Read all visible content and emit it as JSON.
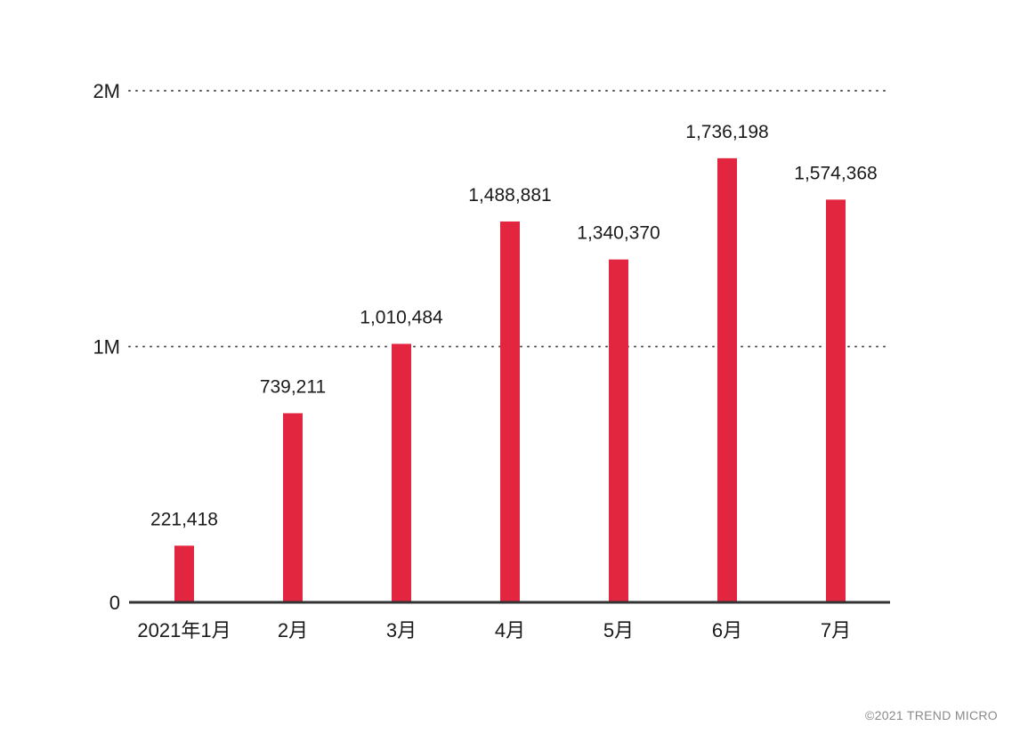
{
  "chart_data": {
    "type": "bar",
    "categories": [
      "2021年1月",
      "2月",
      "3月",
      "4月",
      "5月",
      "6月",
      "7月"
    ],
    "values": [
      221418,
      739211,
      1010484,
      1488881,
      1340370,
      1736198,
      1574368
    ],
    "value_labels": [
      "221,418",
      "739,211",
      "1,010,484",
      "1,488,881",
      "1,340,370",
      "1,736,198",
      "1,574,368"
    ],
    "yticks": [
      {
        "value": 0,
        "label": "0"
      },
      {
        "value": 1000000,
        "label": "1M"
      },
      {
        "value": 2000000,
        "label": "2M"
      }
    ],
    "ylim": [
      0,
      2000000
    ],
    "grid": "dotted horizontal",
    "bar_color": "#e3263f"
  },
  "footer": {
    "copyright": "©2021 TREND MICRO"
  }
}
